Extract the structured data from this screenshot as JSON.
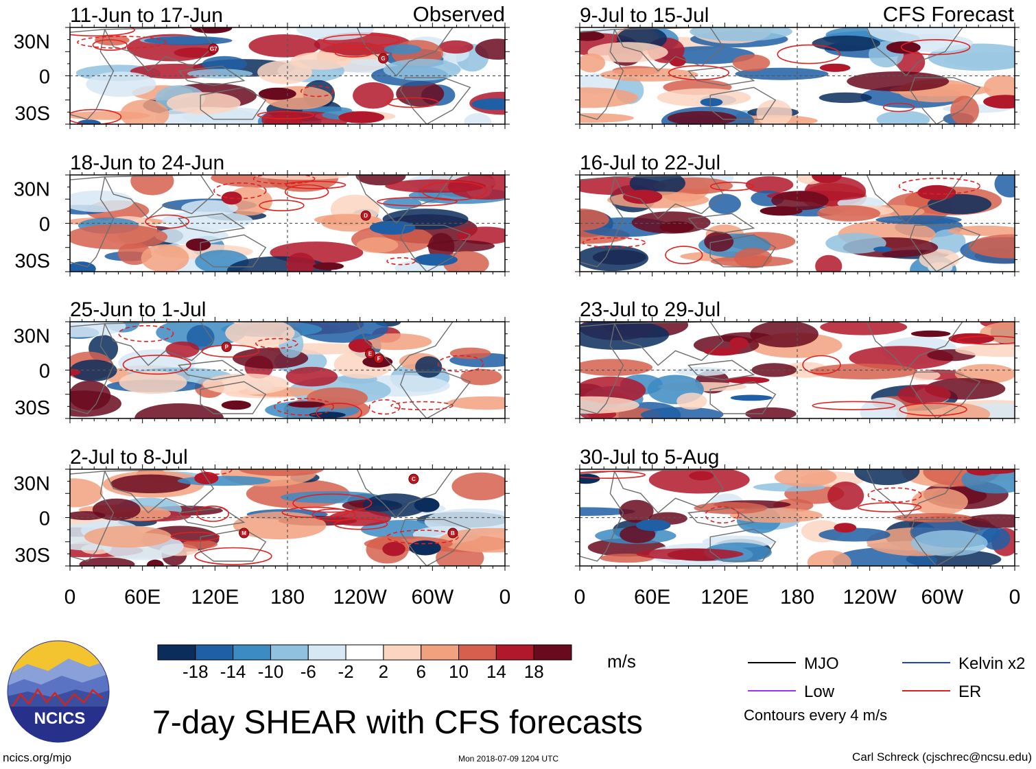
{
  "columns": {
    "left_label": "Observed",
    "right_label": "CFS Forecast"
  },
  "panels": [
    {
      "label": "11-Jun to 17-Jun",
      "kind": "observed",
      "storms": [
        "G7",
        "G"
      ]
    },
    {
      "label": "18-Jun to 24-Jun",
      "kind": "observed",
      "storms": [
        "D"
      ]
    },
    {
      "label": "25-Jun to 1-Jul",
      "kind": "observed",
      "storms": [
        "P",
        "E",
        "F"
      ]
    },
    {
      "label": "2-Jul to 8-Jul",
      "kind": "observed",
      "storms": [
        "M",
        "C",
        "B"
      ]
    },
    {
      "label": "9-Jul to 15-Jul",
      "kind": "forecast",
      "storms": []
    },
    {
      "label": "16-Jul to 22-Jul",
      "kind": "forecast",
      "storms": []
    },
    {
      "label": "23-Jul to 29-Jul",
      "kind": "forecast",
      "storms": []
    },
    {
      "label": "30-Jul to 5-Aug",
      "kind": "forecast",
      "storms": []
    }
  ],
  "axes": {
    "lat_labels": [
      "30N",
      "0",
      "30S"
    ],
    "lon_labels": [
      "0",
      "60E",
      "120E",
      "180",
      "120W",
      "60W",
      "0"
    ]
  },
  "colorbar": {
    "unit": "m/s",
    "ticks": [
      "-18",
      "-14",
      "-10",
      "-6",
      "-2",
      "2",
      "6",
      "10",
      "14",
      "18"
    ],
    "colors": [
      "#0b2d5c",
      "#1f5fa5",
      "#3c8bc3",
      "#90c2df",
      "#d6e8f3",
      "#ffffff",
      "#fbd5c1",
      "#f2a17f",
      "#d6604d",
      "#b2182b",
      "#6a0a1e"
    ]
  },
  "legend": {
    "items": [
      {
        "label": "MJO",
        "color": "#000000"
      },
      {
        "label": "Kelvin x2",
        "color": "#1f3fd0"
      },
      {
        "label": "Low",
        "color": "#9b30ff"
      },
      {
        "label": "ER",
        "color": "#e21f1f"
      }
    ],
    "note": "Contours every 4 m/s"
  },
  "logo": {
    "text": "NCICS"
  },
  "footer": {
    "title": "7-day SHEAR with CFS forecasts",
    "site": "ncics.org/mjo",
    "timestamp": "Mon 2018-07-09 1204 UTC",
    "credit": "Carl Schreck (cjschrec@ncsu.edu)"
  }
}
